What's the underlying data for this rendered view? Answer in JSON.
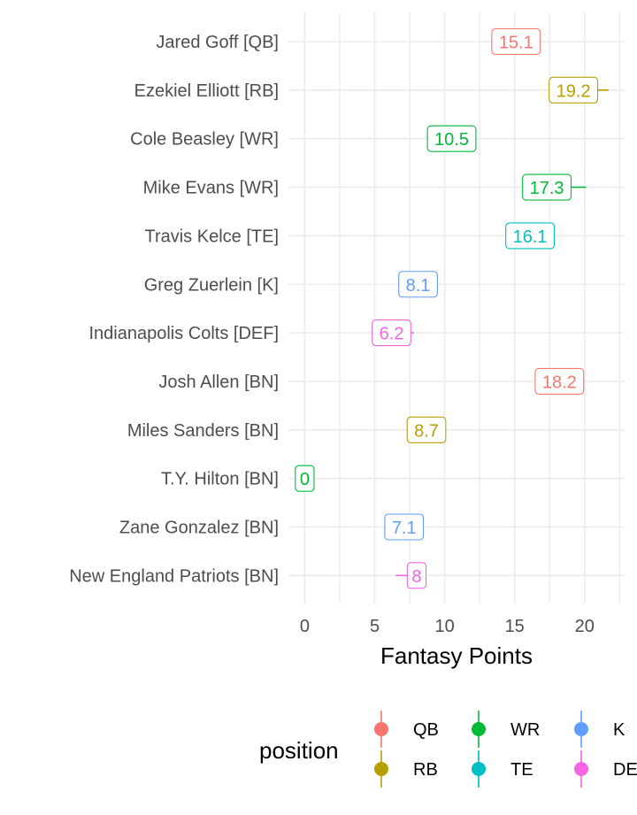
{
  "chart_data": {
    "type": "scatter",
    "xlabel": "Fantasy Points",
    "x_ticks": [
      0,
      5,
      10,
      15,
      20
    ],
    "xlim": [
      -0.9,
      22.6
    ],
    "categories": [
      "Jared Goff [QB]",
      "Ezekiel Elliott [RB]",
      "Cole Beasley [WR]",
      "Mike Evans [WR]",
      "Travis Kelce [TE]",
      "Greg Zuerlein [K]",
      "Indianapolis Colts [DEF]",
      "Josh Allen [BN]",
      "Miles Sanders [BN]",
      "T.Y. Hilton [BN]",
      "Zane Gonzalez [BN]",
      "New England Patriots [BN]"
    ],
    "points": [
      {
        "player": "Jared Goff [QB]",
        "value": 15.1,
        "label": "15.1",
        "position": "QB",
        "xmin": 15.1,
        "xmax": 15.1
      },
      {
        "player": "Ezekiel Elliott [RB]",
        "value": 19.2,
        "label": "19.2",
        "position": "RB",
        "xmin": 19.2,
        "xmax": 21.7
      },
      {
        "player": "Cole Beasley [WR]",
        "value": 10.5,
        "label": "10.5",
        "position": "WR",
        "xmin": 10.5,
        "xmax": 10.5
      },
      {
        "player": "Mike Evans [WR]",
        "value": 17.3,
        "label": "17.3",
        "position": "WR",
        "xmin": 17.3,
        "xmax": 20.1
      },
      {
        "player": "Travis Kelce [TE]",
        "value": 16.1,
        "label": "16.1",
        "position": "TE",
        "xmin": 14.6,
        "xmax": 16.1
      },
      {
        "player": "Greg Zuerlein [K]",
        "value": 8.1,
        "label": "8.1",
        "position": "K",
        "xmin": 8.1,
        "xmax": 8.1
      },
      {
        "player": "Indianapolis Colts [DEF]",
        "value": 6.2,
        "label": "6.2",
        "position": "DEF",
        "xmin": 6.2,
        "xmax": 7.8
      },
      {
        "player": "Josh Allen [BN]",
        "value": 18.2,
        "label": "18.2",
        "position": "QB",
        "xmin": 18.2,
        "xmax": 18.2
      },
      {
        "player": "Miles Sanders [BN]",
        "value": 8.7,
        "label": "8.7",
        "position": "RB",
        "xmin": 8.7,
        "xmax": 8.7
      },
      {
        "player": "T.Y. Hilton [BN]",
        "value": 0,
        "label": "0",
        "position": "WR",
        "xmin": 0,
        "xmax": 0
      },
      {
        "player": "Zane Gonzalez [BN]",
        "value": 7.1,
        "label": "7.1",
        "position": "K",
        "xmin": 7.1,
        "xmax": 7.1
      },
      {
        "player": "New England Patriots [BN]",
        "value": 8,
        "label": "8",
        "position": "DEF",
        "xmin": 6.5,
        "xmax": 8
      }
    ],
    "legend": {
      "title": "position",
      "placement": "bottom",
      "items": [
        {
          "name": "QB",
          "color": "#F8766D"
        },
        {
          "name": "RB",
          "color": "#B79F00"
        },
        {
          "name": "WR",
          "color": "#00BA38"
        },
        {
          "name": "TE",
          "color": "#00BFC4"
        },
        {
          "name": "K",
          "color": "#619CFF"
        },
        {
          "name": "DEF",
          "color": "#F564E3"
        }
      ]
    },
    "grid": true
  }
}
